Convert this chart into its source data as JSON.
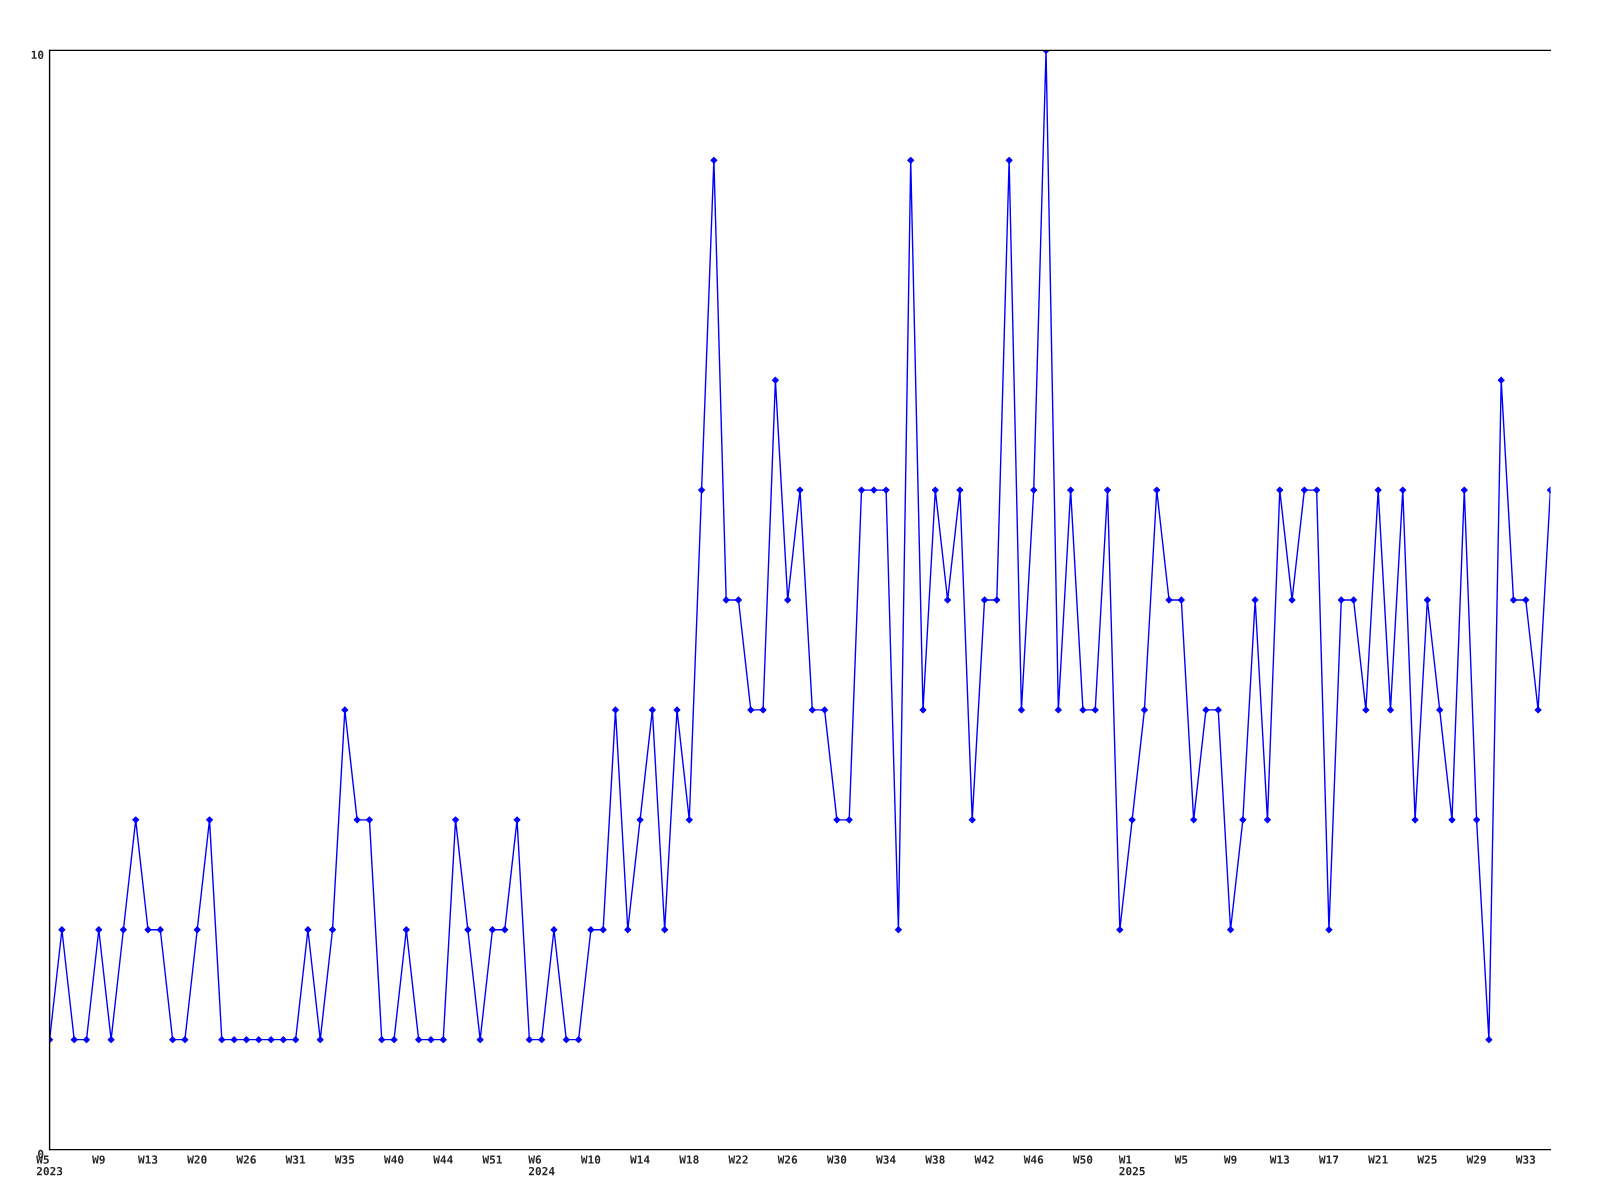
{
  "chart_data": {
    "type": "line",
    "categories": [
      "W5\n2023",
      null,
      null,
      null,
      "W9",
      null,
      null,
      null,
      "W13",
      null,
      null,
      null,
      "W20",
      null,
      null,
      null,
      "W26",
      null,
      null,
      null,
      "W31",
      null,
      null,
      null,
      "W35",
      null,
      null,
      null,
      "W40",
      null,
      null,
      null,
      "W44",
      null,
      null,
      null,
      "W51",
      null,
      null,
      null,
      "W6\n2024",
      null,
      null,
      null,
      "W10",
      null,
      null,
      null,
      "W14",
      null,
      null,
      null,
      "W18",
      null,
      null,
      null,
      "W22",
      null,
      null,
      null,
      "W26",
      null,
      null,
      null,
      "W30",
      null,
      null,
      null,
      "W34",
      null,
      null,
      null,
      "W38",
      null,
      null,
      null,
      "W42",
      null,
      null,
      null,
      "W46",
      null,
      null,
      null,
      "W50",
      null,
      null,
      null,
      "W1\n2025",
      null,
      null,
      null,
      "W5",
      null,
      null,
      null,
      "W9",
      null,
      null,
      null,
      "W13",
      null,
      null,
      null,
      "W17",
      null,
      null,
      null,
      "W21",
      null,
      null,
      null,
      "W25",
      null,
      null,
      null,
      "W29",
      null,
      null,
      null,
      "W33",
      null,
      null
    ],
    "series": [
      {
        "color": "#0000ff",
        "values": [
          1,
          2,
          1,
          1,
          2,
          1,
          2,
          3,
          2,
          2,
          1,
          1,
          2,
          3,
          1,
          1,
          1,
          1,
          1,
          1,
          1,
          2,
          1,
          2,
          4,
          3,
          3,
          1,
          1,
          2,
          1,
          1,
          1,
          3,
          2,
          1,
          2,
          2,
          3,
          1,
          1,
          2,
          1,
          1,
          2,
          2,
          4,
          2,
          3,
          4,
          2,
          4,
          3,
          6,
          9,
          5,
          5,
          4,
          4,
          7,
          5,
          6,
          4,
          4,
          3,
          3,
          6,
          6,
          6,
          2,
          9,
          4,
          6,
          5,
          6,
          3,
          5,
          5,
          9,
          4,
          6,
          10,
          4,
          6,
          4,
          4,
          6,
          2,
          3,
          4,
          6,
          5,
          5,
          3,
          4,
          4,
          2,
          3,
          5,
          3,
          6,
          5,
          6,
          6,
          2,
          5,
          5,
          4,
          6,
          4,
          6,
          3,
          5,
          4,
          3,
          6,
          3,
          1,
          7,
          5,
          5,
          4,
          6
        ]
      }
    ],
    "ylim": [
      0,
      10
    ],
    "yticks": [
      0,
      10
    ],
    "grid": false,
    "marker": "diamond",
    "line_style": "solid"
  }
}
